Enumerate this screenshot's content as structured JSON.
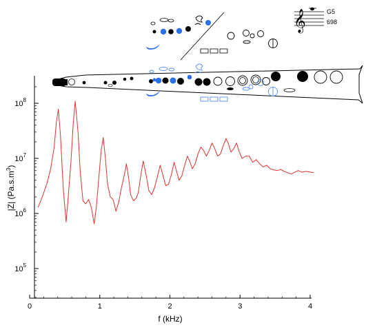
{
  "note_label": "G5",
  "frequency_label": "698",
  "colors": {
    "curve": "#e23030",
    "key_blue": "#2a6ee8",
    "key_blue_outline": "#5a8ee8",
    "axis": "#000000"
  },
  "chart_data": {
    "type": "line",
    "xlabel": "f (kHz)",
    "ylabel": "|Z| (Pa.s.m",
    "ylabel_sup": "3",
    "ylabel_close": ")",
    "xlim": [
      0,
      4
    ],
    "ylim_log10": [
      4.35,
      8.35
    ],
    "y_scale": "log",
    "x_ticks": [
      {
        "value": 0,
        "label": "0"
      },
      {
        "value": 1,
        "label": "1"
      },
      {
        "value": 2,
        "label": "2"
      },
      {
        "value": 3,
        "label": "3"
      },
      {
        "value": 4,
        "label": "4"
      }
    ],
    "y_ticks": [
      {
        "exp": 5,
        "base": "10",
        "sup": "5"
      },
      {
        "exp": 6,
        "base": "10",
        "sup": "6"
      },
      {
        "exp": 7,
        "base": "10",
        "sup": "7"
      },
      {
        "exp": 8,
        "base": "10",
        "sup": "8"
      }
    ],
    "series": [
      {
        "x": [
          0.12,
          0.18,
          0.25,
          0.3,
          0.35,
          0.38,
          0.41,
          0.44,
          0.48,
          0.52,
          0.55,
          0.59,
          0.62,
          0.65,
          0.69,
          0.72,
          0.76,
          0.8,
          0.84,
          0.88,
          0.92,
          0.95,
          0.99,
          1.02,
          1.05,
          1.08,
          1.11,
          1.15,
          1.19,
          1.23,
          1.27,
          1.31,
          1.35,
          1.38,
          1.41,
          1.44,
          1.48,
          1.52,
          1.55,
          1.58,
          1.62,
          1.66,
          1.7,
          1.74,
          1.78,
          1.82,
          1.86,
          1.9,
          1.94,
          1.98,
          2.02,
          2.06,
          2.1,
          2.13,
          2.17,
          2.21,
          2.25,
          2.28,
          2.32,
          2.36,
          2.4,
          2.44,
          2.48,
          2.52,
          2.56,
          2.6,
          2.64,
          2.68,
          2.72,
          2.76,
          2.8,
          2.83,
          2.87,
          2.91,
          2.95,
          2.99,
          3.03,
          3.08,
          3.13,
          3.18,
          3.23,
          3.28,
          3.33,
          3.38,
          3.43,
          3.48,
          3.53,
          3.58,
          3.63,
          3.68,
          3.73,
          3.78,
          3.83,
          3.88,
          3.93,
          3.98,
          4.05
        ],
        "y": [
          1300000.0,
          2000000.0,
          3600000.0,
          6500000.0,
          16000000.0,
          45000000.0,
          78000000.0,
          25000000.0,
          2800000.0,
          700000.0,
          2000000.0,
          9000000.0,
          40000000.0,
          110000000.0,
          30000000.0,
          6000000.0,
          1700000.0,
          1500000.0,
          1800000.0,
          1300000.0,
          650000.0,
          1300000.0,
          5000000.0,
          14000000.0,
          24000000.0,
          10000000.0,
          3500000.0,
          2000000.0,
          1800000.0,
          1100000.0,
          1600000.0,
          3000000.0,
          5000000.0,
          8000000.0,
          4500000.0,
          2200000.0,
          1700000.0,
          1900000.0,
          2400000.0,
          4500000.0,
          9000000.0,
          5000000.0,
          2600000.0,
          2200000.0,
          2900000.0,
          4600000.0,
          7500000.0,
          5000000.0,
          3200000.0,
          3400000.0,
          5000000.0,
          8500000.0,
          5500000.0,
          4000000.0,
          4800000.0,
          7500000.0,
          11000000.0,
          9000000.0,
          6500000.0,
          8000000.0,
          12000000.0,
          16000000.0,
          14000000.0,
          11000000.0,
          14000000.0,
          19000000.0,
          15000000.0,
          11000000.0,
          12000000.0,
          17000000.0,
          23000000.0,
          19000000.0,
          13000000.0,
          15000000.0,
          19000000.0,
          13000000.0,
          10000000.0,
          11000000.0,
          11000000.0,
          8500000.0,
          9500000.0,
          8000000.0,
          7000000.0,
          7500000.0,
          6500000.0,
          6200000.0,
          6000000.0,
          6300000.0,
          5800000.0,
          5500000.0,
          5200000.0,
          5600000.0,
          6000000.0,
          5600000.0,
          5800000.0,
          5700000.0,
          5500000.0
        ]
      }
    ]
  }
}
